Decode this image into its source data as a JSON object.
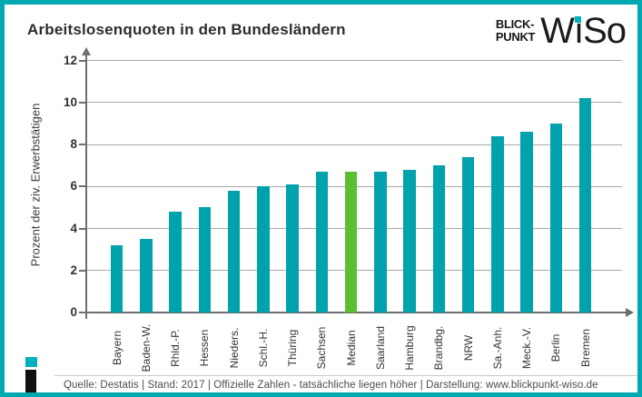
{
  "header": {
    "title": "Arbeitslosenquoten in den Bundesländern",
    "logo": {
      "line1": "BLICK-",
      "line2": "PUNKT",
      "wordmark": "WiSo"
    }
  },
  "chart_data": {
    "type": "bar",
    "title": "Arbeitslosenquoten in den Bundesländern",
    "xlabel": "",
    "ylabel": "Prozent der ziv. Erwerbstätigen",
    "ylim": [
      0,
      12
    ],
    "yticks": [
      0,
      2,
      4,
      6,
      8,
      10,
      12
    ],
    "grid": true,
    "categories": [
      "Bayern",
      "Baden-W.",
      "Rhld.-P.",
      "Hessen",
      "Nieders.",
      "Schl.-H.",
      "Thüring",
      "Sachsen",
      "Median",
      "Saarland",
      "Hamburg",
      "Brandbg.",
      "NRW",
      "Sa.-Anh.",
      "Meck.-V.",
      "Berlin",
      "Bremen"
    ],
    "values": [
      3.2,
      3.5,
      4.8,
      5.0,
      5.8,
      6.0,
      6.1,
      6.7,
      6.7,
      6.7,
      6.8,
      7.0,
      7.4,
      8.4,
      8.6,
      9.0,
      10.2
    ],
    "bar_color": "#00a2ab",
    "highlight": {
      "category": "Median",
      "color": "#5bbf2f"
    },
    "legend": null
  },
  "footer": {
    "text": "Quelle: Destatis  |  Stand: 2017  |  Offizielle Zahlen - tatsächliche liegen höher  |  Darstellung: www.blickpunkt-wiso.de"
  },
  "colors": {
    "frame_teal": "#00a9b2",
    "bar_teal": "#00a2ab",
    "highlight_green": "#5bbf2f",
    "logo_dot_teal": "#00b1bd"
  }
}
